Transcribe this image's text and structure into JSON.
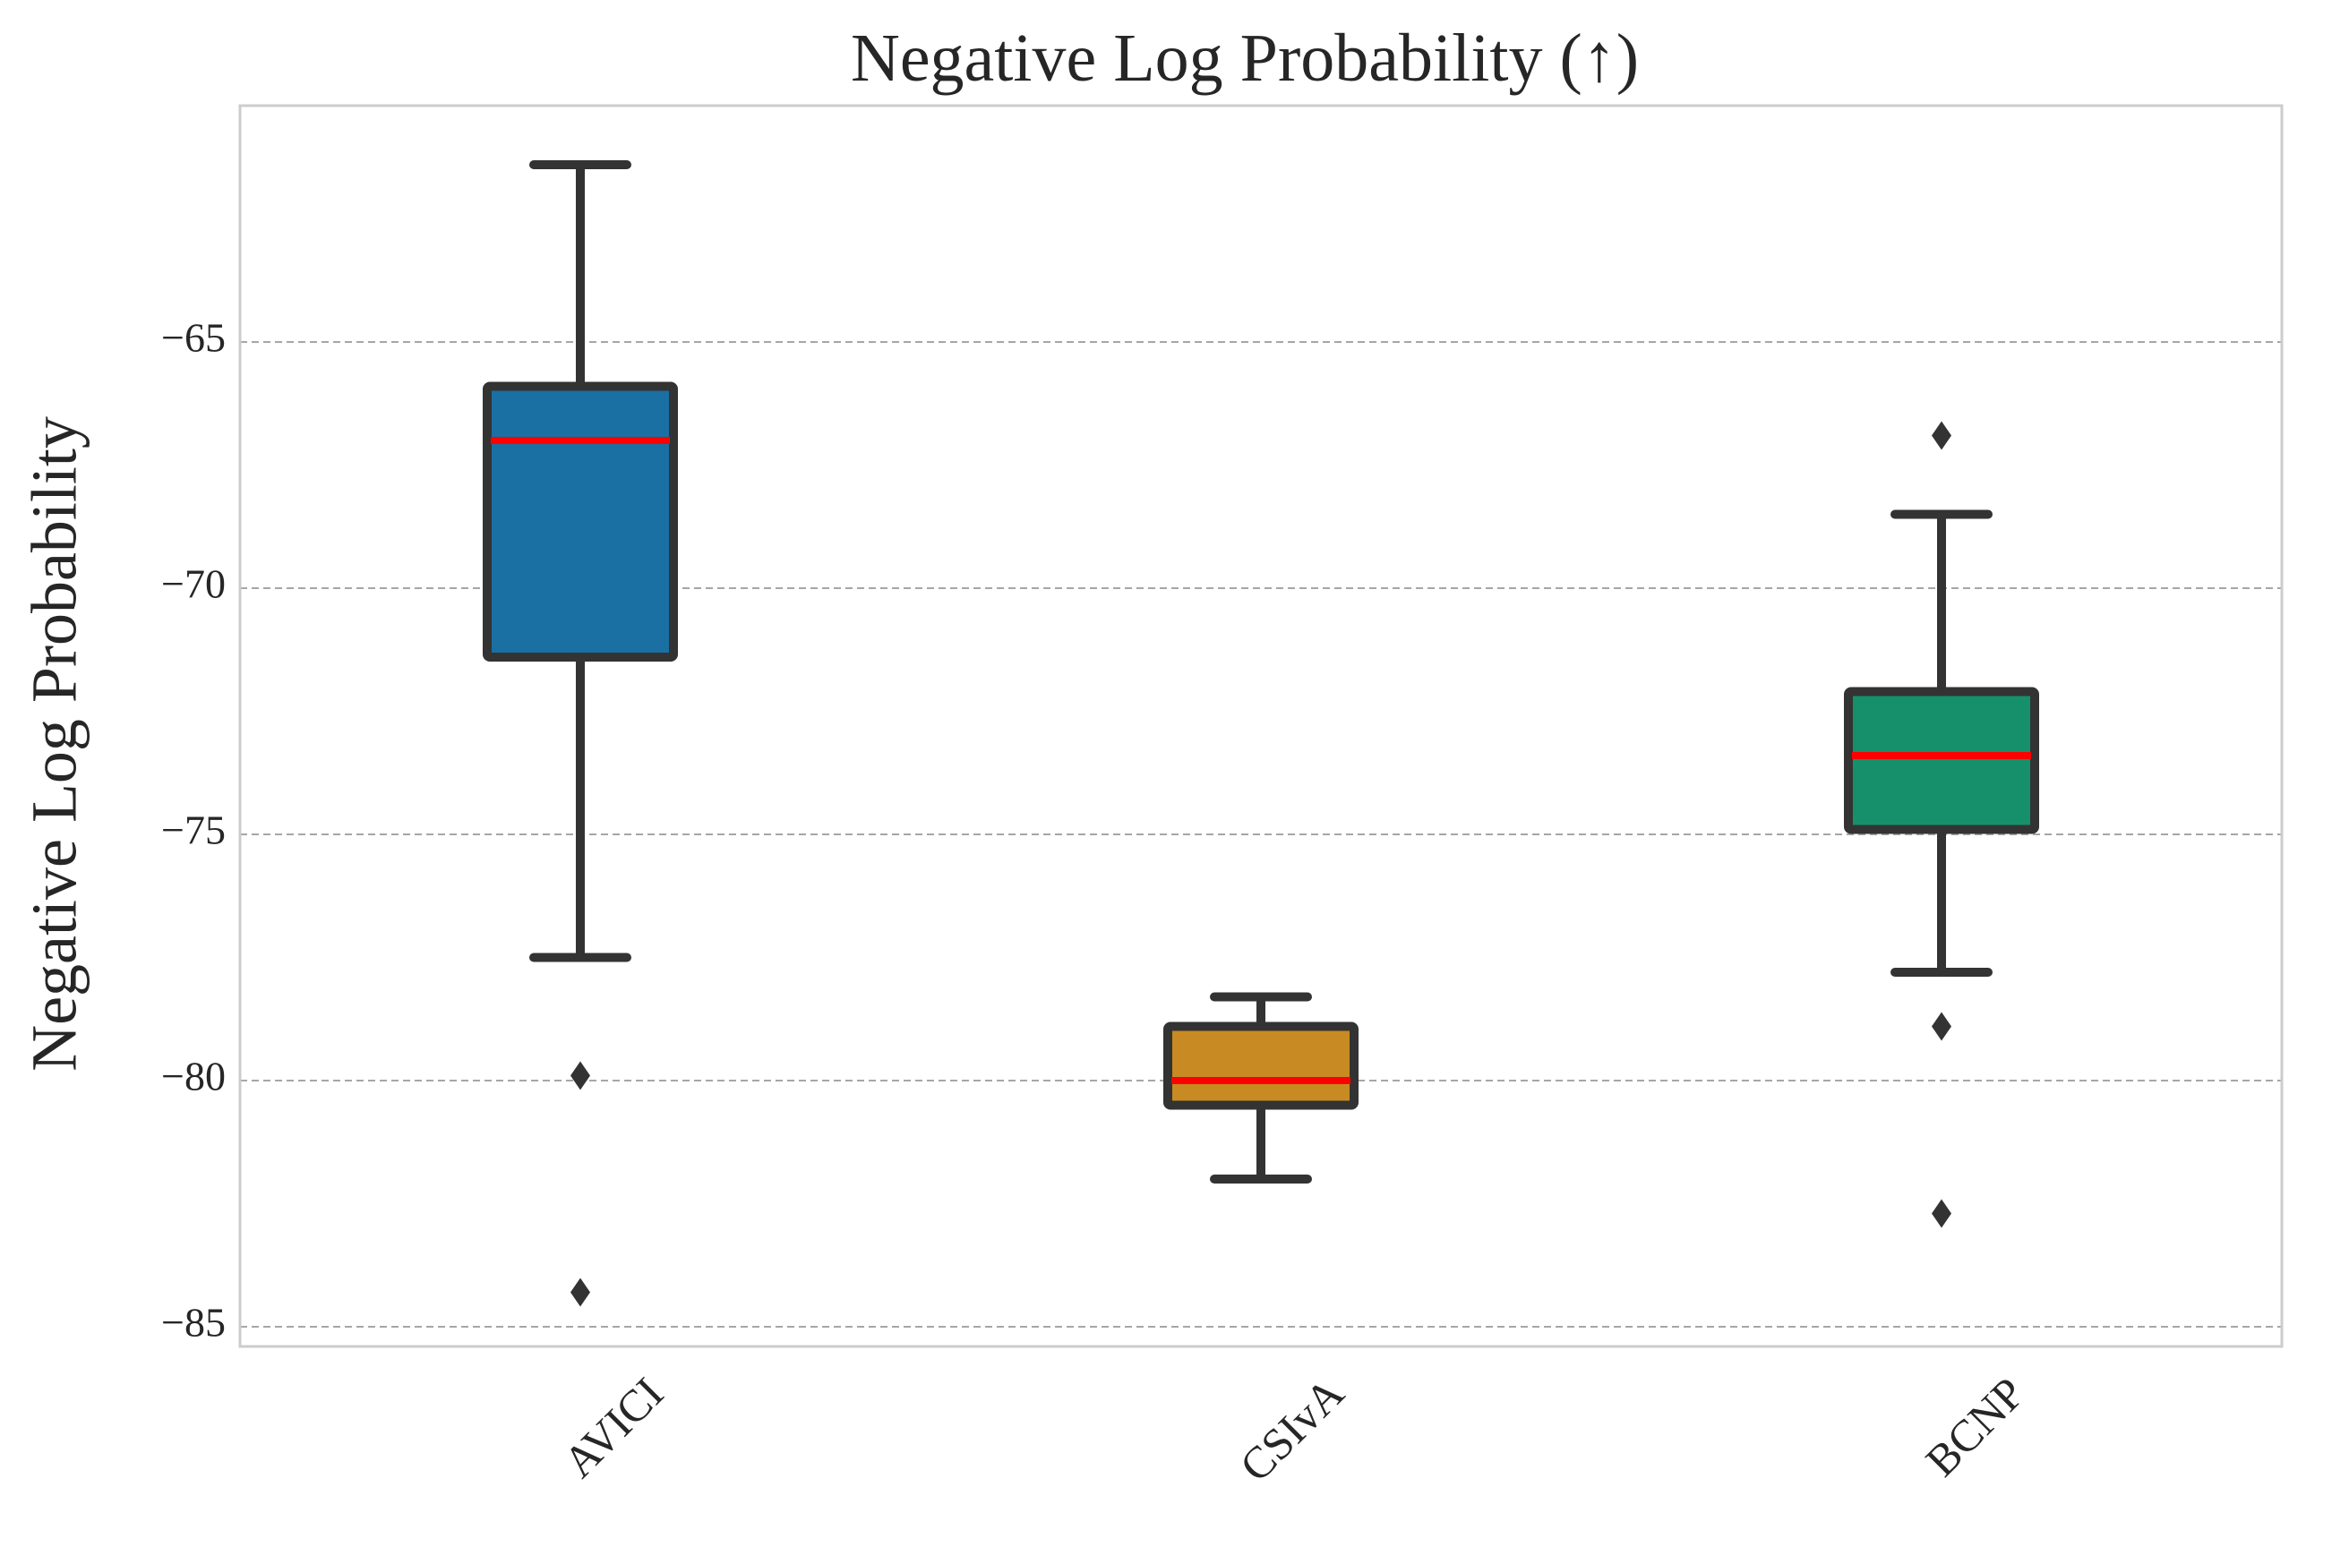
{
  "chart_data": {
    "type": "box",
    "title": "Negative Log Probability (↑)",
    "xlabel": "",
    "ylabel": "Negative Log Probability",
    "ylim": [
      -85.4,
      -60.2
    ],
    "yticks": [
      -65,
      -70,
      -75,
      -80,
      -85
    ],
    "ytick_labels": [
      "−65",
      "−70",
      "−75",
      "−80",
      "−85"
    ],
    "grid": "horizontal-dashed",
    "categories": [
      "AVICI",
      "CSIvA",
      "BCNP"
    ],
    "boxes": [
      {
        "category": "AVICI",
        "whisker_low": -77.5,
        "q1": -71.4,
        "median": -67.0,
        "q3": -65.9,
        "whisker_high": -61.4,
        "outliers": [
          -79.9,
          -84.3
        ],
        "color": "#1a6fa3"
      },
      {
        "category": "CSIvA",
        "whisker_low": -82.0,
        "q1": -80.5,
        "median": -80.0,
        "q3": -78.9,
        "whisker_high": -78.3,
        "outliers": [],
        "color": "#c88a22"
      },
      {
        "category": "BCNP",
        "whisker_low": -77.8,
        "q1": -74.9,
        "median": -73.4,
        "q3": -72.1,
        "whisker_high": -68.5,
        "outliers": [
          -66.9,
          -78.9,
          -82.7
        ],
        "color": "#16906a"
      }
    ],
    "colors": {
      "median_line": "#ff0000",
      "box_edge": "#333333",
      "grid": "#a6a6a6",
      "spine": "#cccccc"
    }
  }
}
